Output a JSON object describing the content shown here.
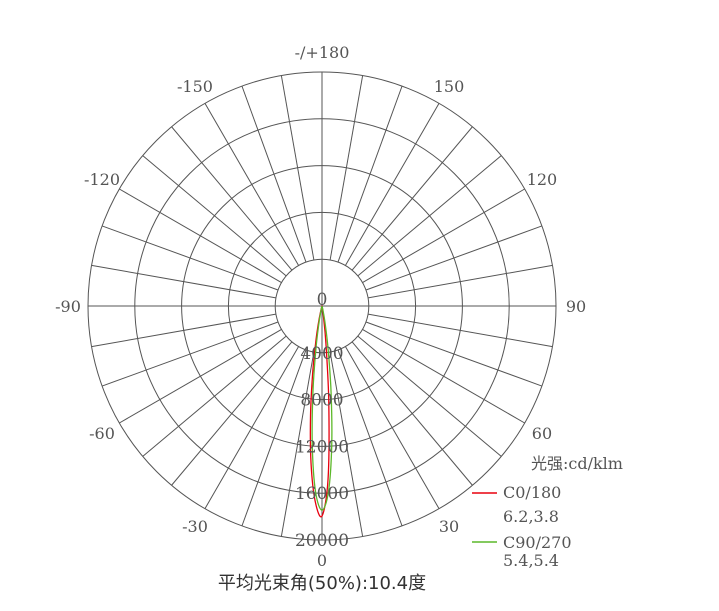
{
  "chart_data": {
    "type": "polar",
    "title": "平均光束角(50%):10.4度",
    "unit_label": "光强:cd/klm",
    "radial_ticks": [
      0,
      4000,
      8000,
      12000,
      16000,
      20000
    ],
    "radial_range": [
      0,
      20000
    ],
    "angle_ticks": [
      {
        "angle": 0,
        "label": "0"
      },
      {
        "angle": 30,
        "label": "30"
      },
      {
        "angle": 60,
        "label": "60"
      },
      {
        "angle": 90,
        "label": "90"
      },
      {
        "angle": 120,
        "label": "120"
      },
      {
        "angle": 150,
        "label": "150"
      },
      {
        "angle": 180,
        "label": "-/+180"
      },
      {
        "angle": -150,
        "label": "-150"
      },
      {
        "angle": -120,
        "label": "-120"
      },
      {
        "angle": -90,
        "label": "-90"
      },
      {
        "angle": -60,
        "label": "-60"
      },
      {
        "angle": -30,
        "label": "-30"
      }
    ],
    "grid": true,
    "spoke_step_deg": 10,
    "legend_placement": "bottom-right",
    "series": [
      {
        "name": "C0/180",
        "beam_angles": "6.2,3.8",
        "color": "#e8000f",
        "angles": [
          -15,
          -12,
          -10,
          -8,
          -6,
          -4,
          -2,
          0,
          2,
          4,
          6,
          8,
          10,
          12,
          15
        ],
        "values": [
          310,
          1340,
          2960,
          5660,
          9380,
          13450,
          16700,
          17950,
          14810,
          8330,
          3190,
          830,
          150,
          20,
          0
        ]
      },
      {
        "name": "C90/270",
        "beam_angles": "5.4,5.4",
        "color": "#5cb82a",
        "angles": [
          -15,
          -12,
          -10,
          -8,
          -6,
          -4,
          -2,
          0,
          2,
          4,
          6,
          8,
          10,
          12,
          15
        ],
        "values": [
          80,
          570,
          1620,
          3810,
          7420,
          11930,
          15870,
          17450,
          15870,
          11930,
          7420,
          3810,
          1620,
          570,
          80
        ]
      }
    ]
  }
}
